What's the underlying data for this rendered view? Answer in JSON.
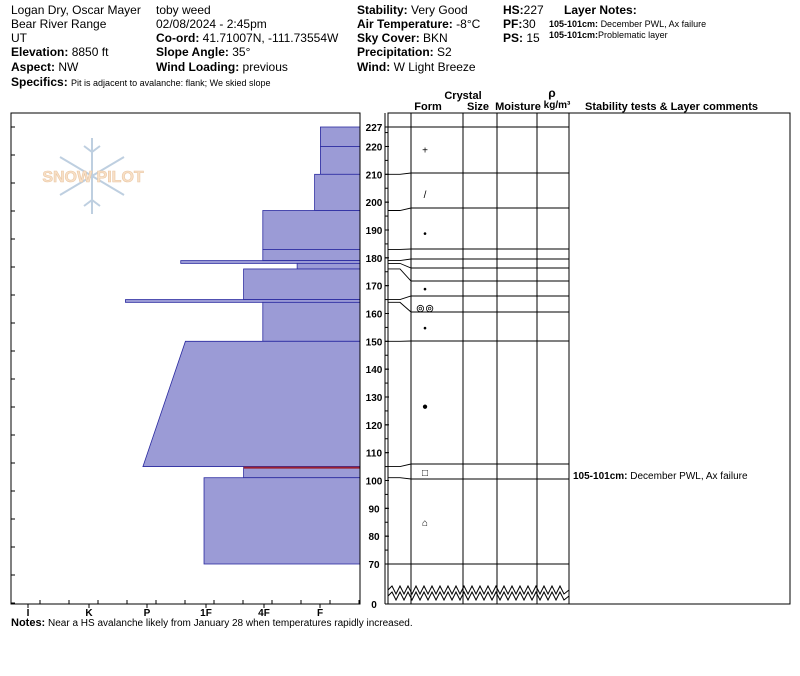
{
  "header": {
    "observers": "Logan Dry, Oscar Mayer",
    "observer2": "toby weed",
    "location": "Bear River Range",
    "date_time": "02/08/2024 - 2:45pm",
    "state": "UT",
    "elevation_label": "Elevation:",
    "elevation": "8850 ft",
    "coord_label": "Co-ord:",
    "coord": "41.71007N, -111.73554W",
    "aspect_label": "Aspect:",
    "aspect": "NW",
    "slope_label": "Slope Angle:",
    "slope": "35°",
    "specifics_label": "Specifics:",
    "specifics": "Pit is adjacent to avalanche: flank; We skied slope",
    "wind_loading_label": "Wind Loading:",
    "wind_loading": "previous",
    "stability_label": "Stability:",
    "stability": "Very Good",
    "air_temp_label": "Air Temperature:",
    "air_temp": "-8°C",
    "sky_label": "Sky Cover:",
    "sky": "BKN",
    "precip_label": "Precipitation:",
    "precip": "S2",
    "wind_label": "Wind:",
    "wind": "W Light Breeze",
    "hs_label": "HS:",
    "hs": "227",
    "pf_label": "PF:",
    "pf": "30",
    "ps_label": "PS:",
    "ps": "15",
    "layer_notes_label": "Layer Notes:",
    "layer_note1_range": "105-101cm:",
    "layer_note1_text": "December PWL, Ax failure",
    "layer_note2_range": "105-101cm:",
    "layer_note2_text": "Problematic layer"
  },
  "watermark": "SNOW PILOT",
  "columns": {
    "crystal": "Crystal",
    "form": "Form",
    "size": "Size",
    "moisture": "Moisture",
    "rho": "ρ",
    "density_unit": "kg/m³",
    "comments": "Stability tests & Layer comments"
  },
  "hardness_ticks": [
    "I",
    "K",
    "P",
    "1F",
    "4F",
    "F"
  ],
  "height_ticks": [
    "227",
    "220",
    "210",
    "200",
    "190",
    "180",
    "170",
    "160",
    "150",
    "140",
    "130",
    "120",
    "110",
    "100",
    "90",
    "80",
    "70",
    "0"
  ],
  "comment_rows": [
    {
      "range": "105-101cm:",
      "text": "December PWL, Ax failure"
    }
  ],
  "notes_label": "Notes:",
  "notes": "Near a HS avalanche likely from January 28 when temperatures rapidly increased.",
  "colors": {
    "profile_fill": "#9b9bd6",
    "profile_edge": "#2a2aa0",
    "weak_layer": "#9a2030"
  },
  "chart_data": {
    "type": "snow_profile",
    "hs_cm": 227,
    "y_range_cm": [
      0,
      227
    ],
    "hardness_scale": [
      "I",
      "K",
      "P",
      "1F",
      "4F",
      "F"
    ],
    "layers": [
      {
        "top": 227,
        "bottom": 220,
        "hardness": 0.68
      },
      {
        "top": 220,
        "bottom": 210,
        "hardness": 0.68
      },
      {
        "top": 210,
        "bottom": 197,
        "hardness": 0.78
      },
      {
        "top": 197,
        "bottom": 183,
        "hardness": 1.67
      },
      {
        "top": 183,
        "bottom": 179,
        "hardness": 1.67
      },
      {
        "top": 179,
        "bottom": 178,
        "hardness": 3.08
      },
      {
        "top": 178,
        "bottom": 176,
        "hardness": 1.08
      },
      {
        "top": 176,
        "bottom": 165,
        "hardness": 2.0
      },
      {
        "top": 165,
        "bottom": 164,
        "hardness": 4.03
      },
      {
        "top": 164,
        "bottom": 150,
        "hardness": 1.67
      },
      {
        "top": 150,
        "bottom": 105,
        "hardness": "gradient",
        "top_hardness": 3.0,
        "bottom_hardness": 3.73
      },
      {
        "top": 105,
        "bottom": 101,
        "hardness": 2.0,
        "weak_layer": true
      },
      {
        "top": 101,
        "bottom": 70,
        "hardness": 2.68
      }
    ],
    "grain_forms": [
      {
        "height": 219,
        "symbol": "+"
      },
      {
        "height": 203,
        "symbol": "/"
      },
      {
        "height": 189,
        "symbol": "•"
      },
      {
        "height": 169,
        "symbol": "•"
      },
      {
        "height": 162,
        "symbol": "⊚⊚"
      },
      {
        "height": 155,
        "symbol": "•"
      },
      {
        "height": 127,
        "symbol": "●"
      },
      {
        "height": 103,
        "symbol": "□"
      },
      {
        "height": 85,
        "symbol": "⌂"
      }
    ]
  }
}
